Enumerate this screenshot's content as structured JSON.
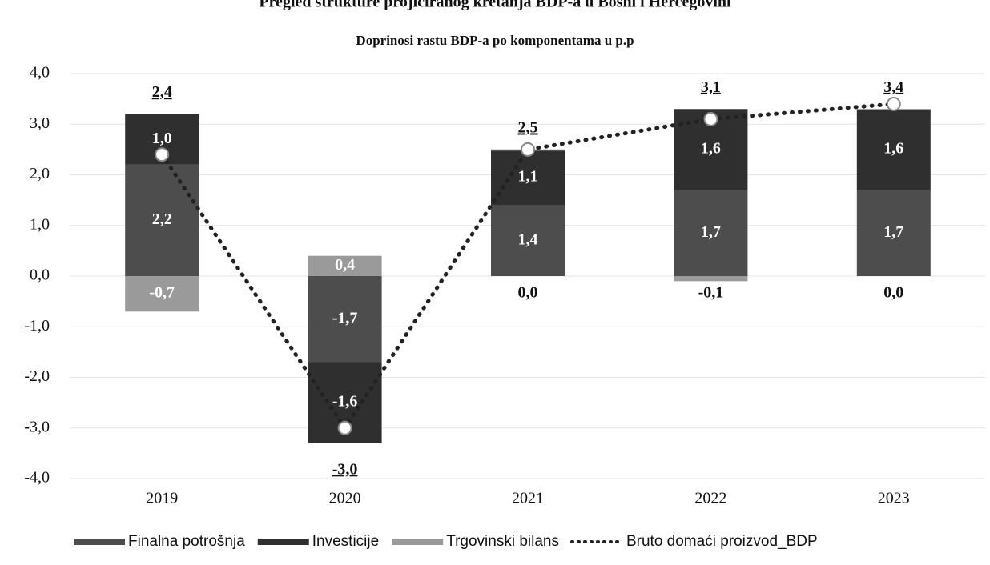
{
  "chart_data": {
    "type": "stacked_bar_line",
    "title": "Pregled strukture projiciranog kretanja BDP-a u Bosni i Hercegovini",
    "subtitle": "Doprinosi rastu BDP-a po komponentama u p.p",
    "categories": [
      "2019",
      "2020",
      "2021",
      "2022",
      "2023"
    ],
    "series": [
      {
        "name": "Finalna potrošnja",
        "color": "#4d4d4d",
        "values": [
          2.2,
          -1.7,
          1.4,
          1.7,
          1.7
        ],
        "value_labels": [
          "2,2",
          "-1,7",
          "1,4",
          "1,7",
          "1,7"
        ]
      },
      {
        "name": "Investicije",
        "color": "#2f2f2f",
        "values": [
          1.0,
          -1.6,
          1.1,
          1.6,
          1.6
        ],
        "value_labels": [
          "1,0",
          "-1,6",
          "1,1",
          "1,6",
          "1,6"
        ]
      },
      {
        "name": "Trgovinski bilans",
        "color": "#9a9a9a",
        "values": [
          -0.7,
          0.4,
          0.0,
          -0.1,
          0.0
        ],
        "value_labels": [
          "-0,7",
          "0,4",
          "0,0",
          "-0,1",
          "0,0"
        ]
      },
      {
        "name": "Bruto domaći proizvod_BDP",
        "type": "line",
        "color": "#222",
        "values": [
          2.4,
          -3.0,
          2.5,
          3.1,
          3.4
        ],
        "value_labels": [
          "2,4",
          "-3,0",
          "2,5",
          "3,1",
          "3,4"
        ]
      }
    ],
    "ylim": [
      -4.0,
      4.0
    ],
    "yticks": [
      {
        "value": -4.0,
        "label": "-4,0"
      },
      {
        "value": -3.0,
        "label": "-3,0"
      },
      {
        "value": -2.0,
        "label": "-2,0"
      },
      {
        "value": -1.0,
        "label": "-1,0"
      },
      {
        "value": 0.0,
        "label": "0,0"
      },
      {
        "value": 1.0,
        "label": "1,0"
      },
      {
        "value": 2.0,
        "label": "2,0"
      },
      {
        "value": 3.0,
        "label": "3,0"
      },
      {
        "value": 4.0,
        "label": "4,0"
      }
    ],
    "grid": true
  }
}
